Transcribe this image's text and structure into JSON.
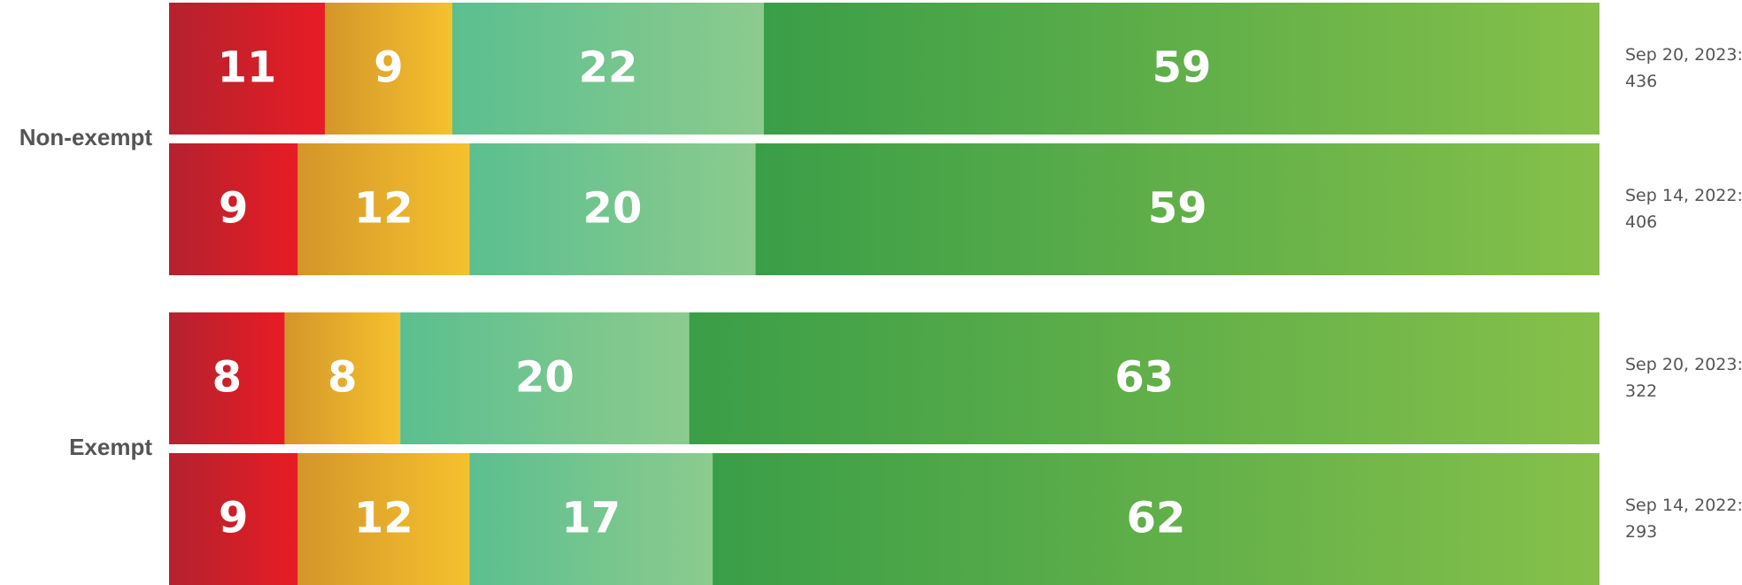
{
  "chart_data": {
    "type": "bar",
    "orientation": "horizontal",
    "stacked": true,
    "colors": [
      [
        "#b3222f",
        "#e81c24"
      ],
      [
        "#d4962a",
        "#f5c12e"
      ],
      [
        "#5bbf8f",
        "#8ccb8e"
      ],
      [
        "#3a9e48",
        "#86c04a"
      ]
    ],
    "groups": [
      {
        "name": "Non-exempt",
        "rows": [
          {
            "date": "Sep 20, 2023:",
            "n": 436,
            "values": [
              11,
              9,
              22,
              59
            ]
          },
          {
            "date": "Sep 14, 2022:",
            "n": 406,
            "values": [
              9,
              12,
              20,
              59
            ]
          }
        ]
      },
      {
        "name": "Exempt",
        "rows": [
          {
            "date": "Sep 20, 2023:",
            "n": 322,
            "values": [
              8,
              8,
              20,
              63
            ]
          },
          {
            "date": "Sep 14, 2022:",
            "n": 293,
            "values": [
              9,
              12,
              17,
              62
            ]
          }
        ]
      }
    ]
  }
}
